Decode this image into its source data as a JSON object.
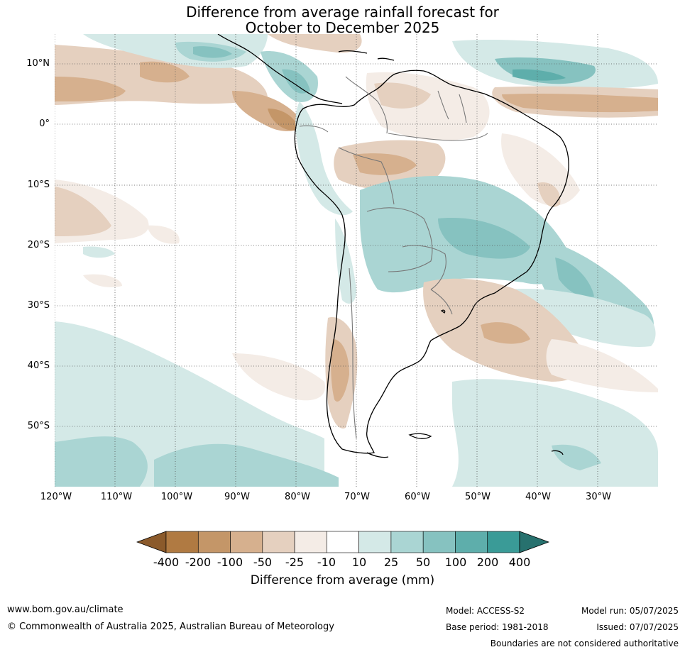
{
  "title": {
    "line1": "Difference from average rainfall forecast for",
    "line2": "October to December 2025"
  },
  "map": {
    "lat_labels": [
      "10°N",
      "0°",
      "10°S",
      "20°S",
      "30°S",
      "40°S",
      "50°S"
    ],
    "lon_labels": [
      "120°W",
      "110°W",
      "100°W",
      "90°W",
      "80°W",
      "70°W",
      "60°W",
      "50°W",
      "40°W",
      "30°W"
    ],
    "grid": "dotted"
  },
  "colorbar": {
    "ticks": [
      "-400",
      "-200",
      "-100",
      "-50",
      "-25",
      "-10",
      "10",
      "25",
      "50",
      "100",
      "200",
      "400"
    ],
    "colors": [
      "#8b5a2b",
      "#b07a42",
      "#c49668",
      "#d6b08e",
      "#e5d0bf",
      "#f4ece6",
      "#ffffff",
      "#d4e9e7",
      "#aad5d3",
      "#86c2c0",
      "#5eaeab",
      "#3a9b97",
      "#27716e"
    ],
    "label": "Difference from average (mm)"
  },
  "footer": {
    "website": "www.bom.gov.au/climate",
    "copyright": "© Commonwealth of Australia 2025, Australian Bureau of Meteorology",
    "model": "Model: ACCESS-S2",
    "base_period": "Base period: 1981-2018",
    "model_run": "Model run: 05/07/2025",
    "issued": "Issued: 07/07/2025",
    "disclaimer": "Boundaries are not considered authoritative"
  }
}
